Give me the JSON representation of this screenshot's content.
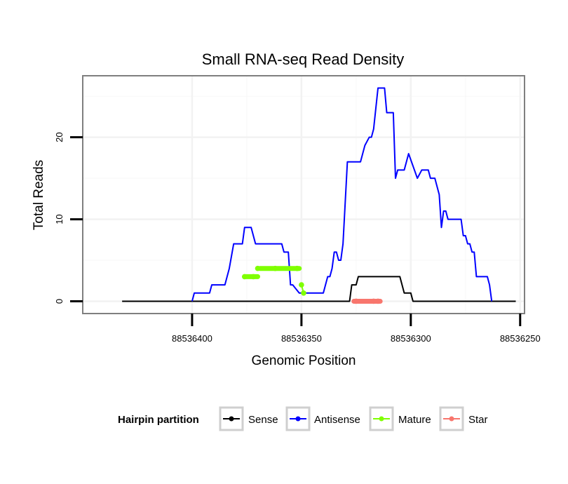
{
  "chart_data": {
    "type": "line",
    "title": "Small RNA-seq Read Density",
    "xlabel": "Genomic Position",
    "ylabel": "Total Reads",
    "x_reversed": true,
    "xlim": [
      88536450,
      88536248
    ],
    "ylim": [
      -1.5,
      27.5
    ],
    "xticks": [
      88536400,
      88536350,
      88536300,
      88536250
    ],
    "xtick_labels": [
      "88536400",
      "88536350",
      "88536300",
      "88536250"
    ],
    "yticks": [
      0,
      10,
      20
    ],
    "ytick_labels": [
      "0",
      "10",
      "20"
    ],
    "grid": true,
    "legend": {
      "title": "Hairpin partition",
      "position": "bottom",
      "entries": [
        "Sense",
        "Antisense",
        "Mature",
        "Star"
      ]
    },
    "series": [
      {
        "name": "Sense",
        "color": "#000000",
        "points": [
          [
            88536432,
            0
          ],
          [
            88536374,
            0
          ],
          [
            88536349.5,
            0
          ],
          [
            88536348,
            0
          ],
          [
            88536330,
            0
          ],
          [
            88536328,
            0
          ],
          [
            88536327,
            2
          ],
          [
            88536325,
            2
          ],
          [
            88536324,
            3
          ],
          [
            88536305,
            3
          ],
          [
            88536303,
            1
          ],
          [
            88536300,
            1
          ],
          [
            88536299,
            0
          ],
          [
            88536282,
            0
          ],
          [
            88536281,
            0
          ],
          [
            88536252,
            0
          ]
        ]
      },
      {
        "name": "Antisense",
        "color": "#0000ff",
        "points": [
          [
            88536400,
            0
          ],
          [
            88536399,
            1
          ],
          [
            88536392,
            1
          ],
          [
            88536391,
            2
          ],
          [
            88536385,
            2
          ],
          [
            88536383,
            4
          ],
          [
            88536381,
            7
          ],
          [
            88536377,
            7
          ],
          [
            88536376,
            9
          ],
          [
            88536373,
            9
          ],
          [
            88536371,
            7
          ],
          [
            88536359,
            7
          ],
          [
            88536358,
            6
          ],
          [
            88536356,
            6
          ],
          [
            88536355,
            2
          ],
          [
            88536354,
            2
          ],
          [
            88536351,
            1
          ],
          [
            88536340,
            1
          ],
          [
            88536338,
            3
          ],
          [
            88536337,
            3
          ],
          [
            88536336,
            4
          ],
          [
            88536335,
            6
          ],
          [
            88536334,
            6
          ],
          [
            88536333,
            5
          ],
          [
            88536332,
            5
          ],
          [
            88536331,
            7
          ],
          [
            88536329,
            17
          ],
          [
            88536323,
            17
          ],
          [
            88536321,
            19
          ],
          [
            88536319,
            20
          ],
          [
            88536318,
            20
          ],
          [
            88536317,
            21
          ],
          [
            88536315,
            26
          ],
          [
            88536312,
            26
          ],
          [
            88536311,
            23
          ],
          [
            88536308,
            23
          ],
          [
            88536307,
            15
          ],
          [
            88536306,
            16
          ],
          [
            88536303,
            16
          ],
          [
            88536301,
            18
          ],
          [
            88536297,
            15
          ],
          [
            88536295,
            16
          ],
          [
            88536292,
            16
          ],
          [
            88536291,
            15
          ],
          [
            88536289,
            15
          ],
          [
            88536287,
            13
          ],
          [
            88536286,
            9
          ],
          [
            88536285,
            11
          ],
          [
            88536284,
            11
          ],
          [
            88536283,
            10
          ],
          [
            88536277,
            10
          ],
          [
            88536276,
            8
          ],
          [
            88536275,
            8
          ],
          [
            88536274,
            7
          ],
          [
            88536273,
            7
          ],
          [
            88536272,
            6
          ],
          [
            88536271,
            6
          ],
          [
            88536270,
            3
          ],
          [
            88536265,
            3
          ],
          [
            88536264,
            2
          ],
          [
            88536263,
            0
          ]
        ]
      },
      {
        "name": "Mature",
        "color": "#7fff00",
        "points": [
          [
            88536350,
            2
          ],
          [
            88536349,
            1
          ],
          [
            88536352,
            4
          ],
          [
            88536362,
            4
          ],
          [
            88536370,
            4
          ],
          [
            88536372,
            3
          ],
          [
            88536376,
            3
          ]
        ]
      },
      {
        "name": "Star",
        "color": "#f8766d",
        "points": [
          [
            88536315,
            0
          ],
          [
            88536317,
            0
          ],
          [
            88536325,
            0
          ]
        ]
      }
    ],
    "segments": [
      {
        "series": "Mature",
        "from": [
          88536376,
          3
        ],
        "to": [
          88536370,
          3
        ]
      },
      {
        "series": "Mature",
        "from": [
          88536369,
          4
        ],
        "to": [
          88536351,
          4
        ]
      },
      {
        "series": "Star",
        "from": [
          88536326,
          0
        ],
        "to": [
          88536314,
          0
        ]
      }
    ]
  }
}
